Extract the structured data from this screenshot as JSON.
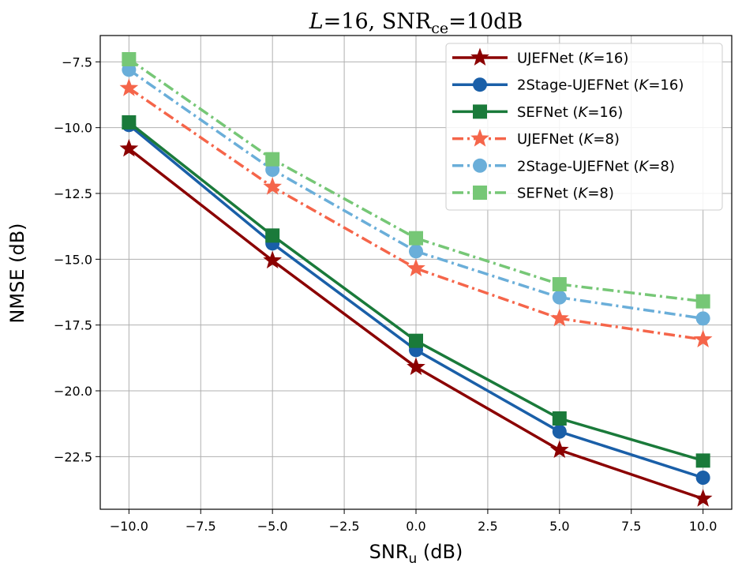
{
  "chart_data": {
    "type": "line",
    "title": {
      "var": "L",
      "eq1": "=16, SNR",
      "sub": "ce",
      "eq2": "=10dB"
    },
    "xlabel": {
      "main": "SNR",
      "sub": "u",
      "unit": " (dB)"
    },
    "ylabel": "NMSE (dB)",
    "xlim": [
      -11,
      11
    ],
    "ylim": [
      -24.5,
      -6.5
    ],
    "xticks": [
      -10,
      -7.5,
      -5,
      -2.5,
      0,
      2.5,
      5,
      7.5,
      10
    ],
    "xtick_labels": [
      "−10.0",
      "−7.5",
      "−5.0",
      "−2.5",
      "0.0",
      "2.5",
      "5.0",
      "7.5",
      "10.0"
    ],
    "yticks": [
      -7.5,
      -10,
      -12.5,
      -15,
      -17.5,
      -20,
      -22.5
    ],
    "ytick_labels": [
      "−7.5",
      "−10.0",
      "−12.5",
      "−15.0",
      "−17.5",
      "−20.0",
      "−22.5"
    ],
    "grid": true,
    "legend_position": "top-right",
    "x": [
      -10,
      -5,
      0,
      5,
      10
    ],
    "series": [
      {
        "name": "UJEFNet",
        "k_var": "K",
        "k_val": "=16",
        "values": [
          -10.8,
          -15.05,
          -19.1,
          -22.25,
          -24.1
        ],
        "color": "#8b0000",
        "dash": "solid",
        "marker": "star"
      },
      {
        "name": "2Stage-UJEFNet",
        "k_var": "K",
        "k_val": "=16",
        "values": [
          -9.9,
          -14.4,
          -18.45,
          -21.55,
          -23.3
        ],
        "color": "#1a5fa8",
        "dash": "solid",
        "marker": "circle"
      },
      {
        "name": "SEFNet",
        "k_var": "K",
        "k_val": "=16",
        "values": [
          -9.8,
          -14.1,
          -18.1,
          -21.05,
          -22.65
        ],
        "color": "#1a7a3a",
        "dash": "solid",
        "marker": "square"
      },
      {
        "name": "UJEFNet",
        "k_var": "K",
        "k_val": "=8",
        "values": [
          -8.5,
          -12.25,
          -15.35,
          -17.25,
          -18.05
        ],
        "color": "#f5654a",
        "dash": "dashdot",
        "marker": "star"
      },
      {
        "name": "2Stage-UJEFNet",
        "k_var": "K",
        "k_val": "=8",
        "values": [
          -7.8,
          -11.6,
          -14.7,
          -16.45,
          -17.25
        ],
        "color": "#6aaed9",
        "dash": "dashdot",
        "marker": "circle"
      },
      {
        "name": "SEFNet",
        "k_var": "K",
        "k_val": "=8",
        "values": [
          -7.4,
          -11.2,
          -14.2,
          -15.95,
          -16.6
        ],
        "color": "#76c776",
        "dash": "dashdot",
        "marker": "square"
      }
    ]
  }
}
